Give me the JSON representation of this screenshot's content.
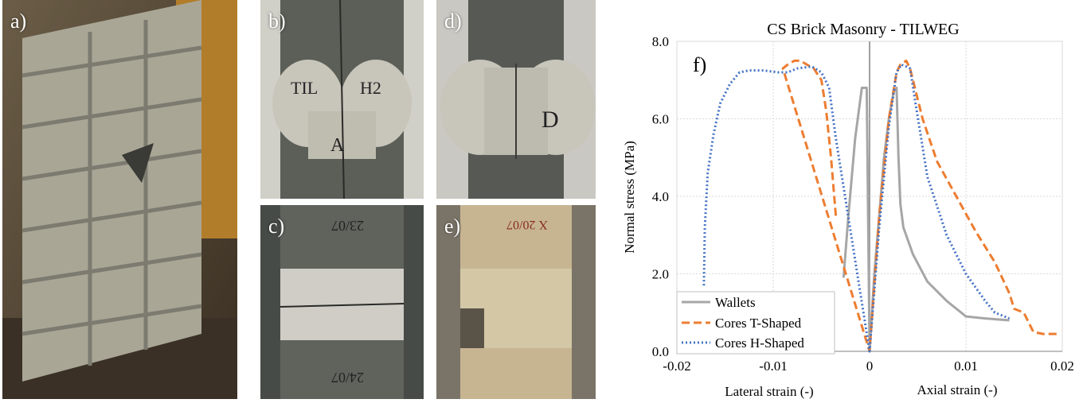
{
  "photos": [
    {
      "label": "a)",
      "subject": "wallet specimen after compression test"
    },
    {
      "label": "b)",
      "subject": "core with H-shaped pattern",
      "marks": [
        "TIL",
        "H2",
        "A"
      ]
    },
    {
      "label": "c)",
      "subject": "core T-shaped test",
      "marks": [
        "23/07",
        "24/07"
      ]
    },
    {
      "label": "d)",
      "subject": "core with D mark",
      "marks": [
        "D"
      ]
    },
    {
      "label": "e)",
      "subject": "core test",
      "marks": [
        "X 20/07"
      ]
    }
  ],
  "colors": {
    "wallets": "#a6a6a6",
    "t_shaped": "#ed7d31",
    "h_shaped": "#4472c4"
  },
  "chart_data": {
    "type": "line",
    "panel_label": "f)",
    "title": "CS Brick Masonry - TILWEG",
    "ylabel": "Normal stress (MPa)",
    "xlabel_left": "Lateral strain (-)",
    "xlabel_right": "Axial strain (-)",
    "xlim": [
      -0.02,
      0.02
    ],
    "ylim": [
      0,
      8
    ],
    "xticks": [
      -0.02,
      -0.01,
      0,
      0.01,
      0.02
    ],
    "xtick_labels": [
      "-0.02",
      "-0.01",
      "0",
      "0.01",
      "0.02"
    ],
    "yticks": [
      0,
      2,
      4,
      6,
      8
    ],
    "ytick_labels": [
      "0.0",
      "2.0",
      "4.0",
      "6.0",
      "8.0"
    ],
    "grid": true,
    "legend_position": "bottom-left",
    "series": [
      {
        "name": "Wallets",
        "style": "solid",
        "color": "#a6a6a6",
        "x": [
          -0.0027,
          -0.0022,
          -0.0015,
          -0.0008,
          -0.0003,
          0,
          0.0005,
          0.001,
          0.0015,
          0.002,
          0.0025,
          0.0028,
          0.003,
          0.0032,
          0.0035,
          0.0045,
          0.006,
          0.008,
          0.01,
          0.012,
          0.0145
        ],
        "y": [
          1.9,
          3.5,
          5.5,
          6.8,
          6.8,
          0,
          2.0,
          3.5,
          5.0,
          6.0,
          6.7,
          6.8,
          5.0,
          3.8,
          3.2,
          2.5,
          1.8,
          1.3,
          0.9,
          0.85,
          0.8
        ]
      },
      {
        "name": "Cores T-Shaped",
        "style": "dashed",
        "color": "#ed7d31",
        "x": [
          -0.0035,
          -0.004,
          -0.0045,
          -0.005,
          -0.0058,
          -0.0065,
          -0.0072,
          -0.0078,
          -0.0085,
          -0.009,
          0,
          0.001,
          0.002,
          0.0028,
          0.0032,
          0.0038,
          0.0042,
          0.0048,
          0.0055,
          0.007,
          0.009,
          0.011,
          0.013,
          0.0145,
          0.015,
          0.016,
          0.0168,
          0.017,
          0.018,
          0.0198
        ],
        "y": [
          3.5,
          5.0,
          6.2,
          7.0,
          7.3,
          7.4,
          7.5,
          7.5,
          7.4,
          7.3,
          0,
          3.5,
          6.0,
          7.2,
          7.4,
          7.5,
          7.3,
          6.7,
          6.0,
          4.9,
          4.0,
          3.1,
          2.3,
          1.5,
          1.1,
          1.0,
          0.6,
          0.5,
          0.45,
          0.45
        ]
      },
      {
        "name": "Cores H-Shaped",
        "style": "dotted",
        "color": "#4472c4",
        "x": [
          -0.0172,
          -0.0171,
          -0.0168,
          -0.0162,
          -0.0155,
          -0.0145,
          -0.0135,
          -0.0125,
          -0.011,
          -0.0095,
          -0.0085,
          -0.0075,
          -0.006,
          -0.005,
          -0.0042,
          -0.0035,
          0,
          0.001,
          0.002,
          0.0028,
          0.0033,
          0.0038,
          0.0042,
          0.0047,
          0.006,
          0.008,
          0.01,
          0.012,
          0.013,
          0.0145
        ],
        "y": [
          1.7,
          3.2,
          4.6,
          5.6,
          6.4,
          6.9,
          7.2,
          7.25,
          7.25,
          7.2,
          7.2,
          7.3,
          7.35,
          7.2,
          6.8,
          5.5,
          0,
          3.2,
          5.8,
          7.2,
          7.4,
          7.35,
          7.3,
          6.5,
          4.5,
          3.0,
          2.0,
          1.3,
          1.0,
          0.85
        ]
      }
    ]
  }
}
